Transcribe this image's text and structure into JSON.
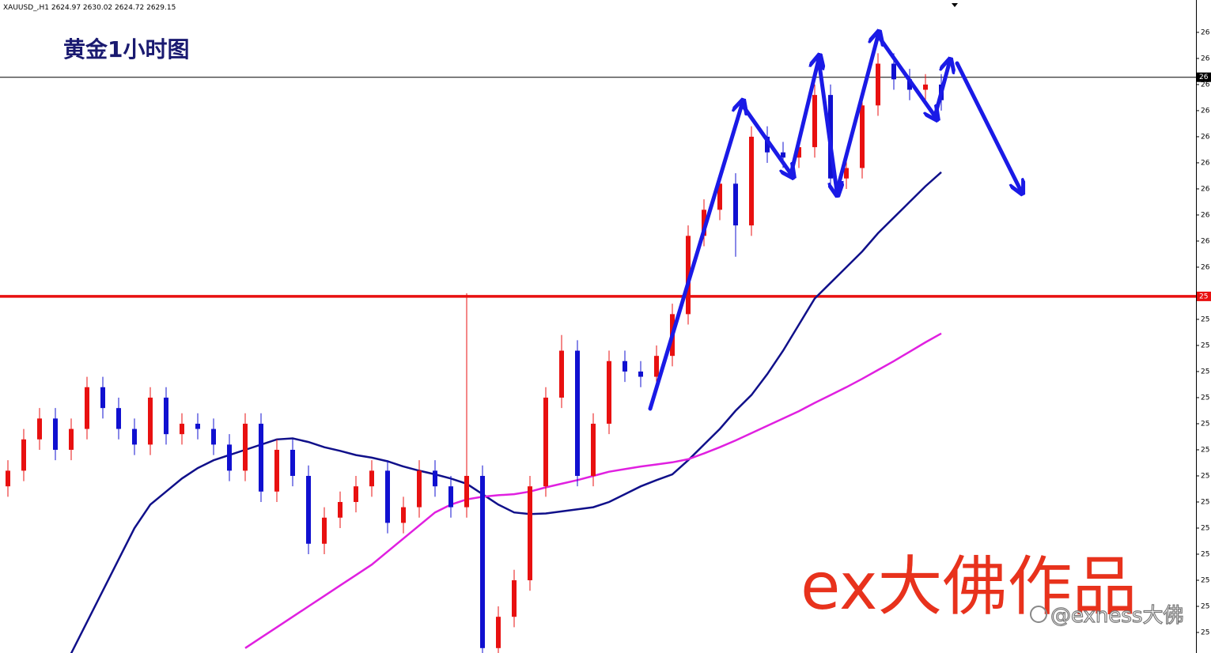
{
  "chart_data": {
    "type": "candlestick",
    "header": "XAUUSD_,H1  2624.97 2630.02 2624.72 2629.15",
    "title": "黄金1小时图",
    "watermark": "ex大佛作品",
    "credit": "@exness大佛",
    "ylim": [
      2531.06,
      2656.2
    ],
    "yticks": [
      {
        "value": 2650,
        "label": "26"
      },
      {
        "value": 2645,
        "label": "26"
      },
      {
        "value": 2640,
        "label": "26"
      },
      {
        "value": 2635,
        "label": "26"
      },
      {
        "value": 2630,
        "label": "26"
      },
      {
        "value": 2625,
        "label": "26"
      },
      {
        "value": 2620,
        "label": "26"
      },
      {
        "value": 2615,
        "label": "26"
      },
      {
        "value": 2610,
        "label": "26"
      },
      {
        "value": 2605,
        "label": "26"
      },
      {
        "value": 2595,
        "label": "25"
      },
      {
        "value": 2590,
        "label": "25"
      },
      {
        "value": 2585,
        "label": "25"
      },
      {
        "value": 2580,
        "label": "25"
      },
      {
        "value": 2575,
        "label": "25"
      },
      {
        "value": 2570,
        "label": "25"
      },
      {
        "value": 2565,
        "label": "25"
      },
      {
        "value": 2560,
        "label": "25"
      },
      {
        "value": 2555,
        "label": "25"
      },
      {
        "value": 2550,
        "label": "25"
      },
      {
        "value": 2545,
        "label": "25"
      },
      {
        "value": 2540,
        "label": "25"
      },
      {
        "value": 2535,
        "label": "25"
      }
    ],
    "hlines": [
      {
        "value": 2641.4,
        "label": "26",
        "color": "#000000"
      },
      {
        "value": 2599.4,
        "label": "25",
        "color": "#e81010"
      }
    ],
    "up_color": "#e81010",
    "down_color": "#1010d0",
    "open": [
      2563,
      2566,
      2572,
      2576,
      2570,
      2574,
      2582,
      2578,
      2574,
      2571,
      2580,
      2573,
      2575,
      2574,
      2571,
      2566,
      2575,
      2562,
      2570,
      2565,
      2552,
      2557,
      2560,
      2563,
      2566,
      2556,
      2559,
      2566,
      2563,
      2559,
      2565,
      2532,
      2538,
      2545,
      2563,
      2580,
      2589,
      2565,
      2575,
      2587,
      2585,
      2584,
      2588,
      2596,
      2611,
      2616,
      2621,
      2613,
      2630,
      2627,
      2626,
      2628,
      2638,
      2622,
      2624,
      2636,
      2644,
      2641,
      2639,
      2640
    ],
    "high": [
      2568,
      2574,
      2578,
      2578,
      2576,
      2584,
      2584,
      2580,
      2576,
      2582,
      2582,
      2577,
      2577,
      2576,
      2573,
      2577,
      2577,
      2572,
      2572,
      2567,
      2559,
      2562,
      2565,
      2568,
      2568,
      2561,
      2568,
      2568,
      2565,
      2600,
      2567,
      2540,
      2547,
      2565,
      2582,
      2592,
      2591,
      2577,
      2589,
      2589,
      2587,
      2590,
      2598,
      2613,
      2618,
      2623,
      2623,
      2632,
      2632,
      2629,
      2630,
      2640,
      2640,
      2626,
      2638,
      2646,
      2646,
      2643,
      2642,
      2642
    ],
    "low": [
      2561,
      2564,
      2570,
      2568,
      2568,
      2572,
      2576,
      2572,
      2569,
      2569,
      2571,
      2571,
      2572,
      2569,
      2564,
      2564,
      2560,
      2560,
      2563,
      2550,
      2550,
      2555,
      2558,
      2561,
      2554,
      2554,
      2557,
      2561,
      2557,
      2557,
      2530,
      2530,
      2536,
      2543,
      2561,
      2578,
      2563,
      2563,
      2573,
      2583,
      2582,
      2582,
      2586,
      2594,
      2609,
      2614,
      2607,
      2611,
      2625,
      2624,
      2624,
      2626,
      2620,
      2620,
      2622,
      2634,
      2639,
      2637,
      2637,
      2635
    ],
    "close": [
      2566,
      2572,
      2576,
      2570,
      2574,
      2582,
      2578,
      2574,
      2571,
      2580,
      2573,
      2575,
      2574,
      2571,
      2566,
      2575,
      2562,
      2570,
      2565,
      2552,
      2557,
      2560,
      2563,
      2566,
      2556,
      2559,
      2566,
      2563,
      2559,
      2565,
      2532,
      2538,
      2545,
      2563,
      2580,
      2589,
      2565,
      2575,
      2587,
      2585,
      2584,
      2588,
      2596,
      2611,
      2616,
      2621,
      2613,
      2630,
      2627,
      2626,
      2628,
      2638,
      2622,
      2624,
      2636,
      2644,
      2641,
      2639,
      2640,
      2637
    ],
    "lines": [
      {
        "color": "#10108a",
        "values": [
          null,
          null,
          null,
          null,
          2531,
          2537,
          2543,
          2549,
          2555,
          2559.5,
          2562,
          2564.5,
          2566.5,
          2568,
          2569,
          2570,
          2571,
          2572,
          2572.2,
          2571.5,
          2570.5,
          2569.8,
          2569,
          2568.5,
          2567.8,
          2566.8,
          2566,
          2565.3,
          2564.5,
          2563.5,
          2561.5,
          2559.5,
          2558,
          2557.7,
          2557.8,
          2558.2,
          2558.6,
          2559,
          2560,
          2561.5,
          2563,
          2564.2,
          2565.3,
          2568,
          2571,
          2574,
          2577.5,
          2580.5,
          2584.5,
          2589,
          2594,
          2599,
          2602,
          2605,
          2608,
          2611.5,
          2614.5,
          2617.5,
          2620.5,
          2623.2
        ]
      },
      {
        "color": "#e020e0",
        "values": [
          null,
          null,
          null,
          null,
          null,
          null,
          null,
          null,
          null,
          null,
          null,
          null,
          null,
          null,
          null,
          2532,
          2534,
          2536,
          2538,
          2540,
          2542,
          2544,
          2546,
          2548,
          2550.5,
          2553,
          2555.5,
          2558,
          2559.5,
          2560.5,
          2561,
          2561.3,
          2561.5,
          2562,
          2562.8,
          2563.5,
          2564.2,
          2565,
          2565.8,
          2566.3,
          2566.8,
          2567.2,
          2567.6,
          2568.2,
          2569.3,
          2570.5,
          2571.8,
          2573.2,
          2574.6,
          2576,
          2577.4,
          2579,
          2580.5,
          2582,
          2583.6,
          2585.3,
          2587,
          2588.8,
          2590.6,
          2592.3
        ]
      }
    ]
  }
}
